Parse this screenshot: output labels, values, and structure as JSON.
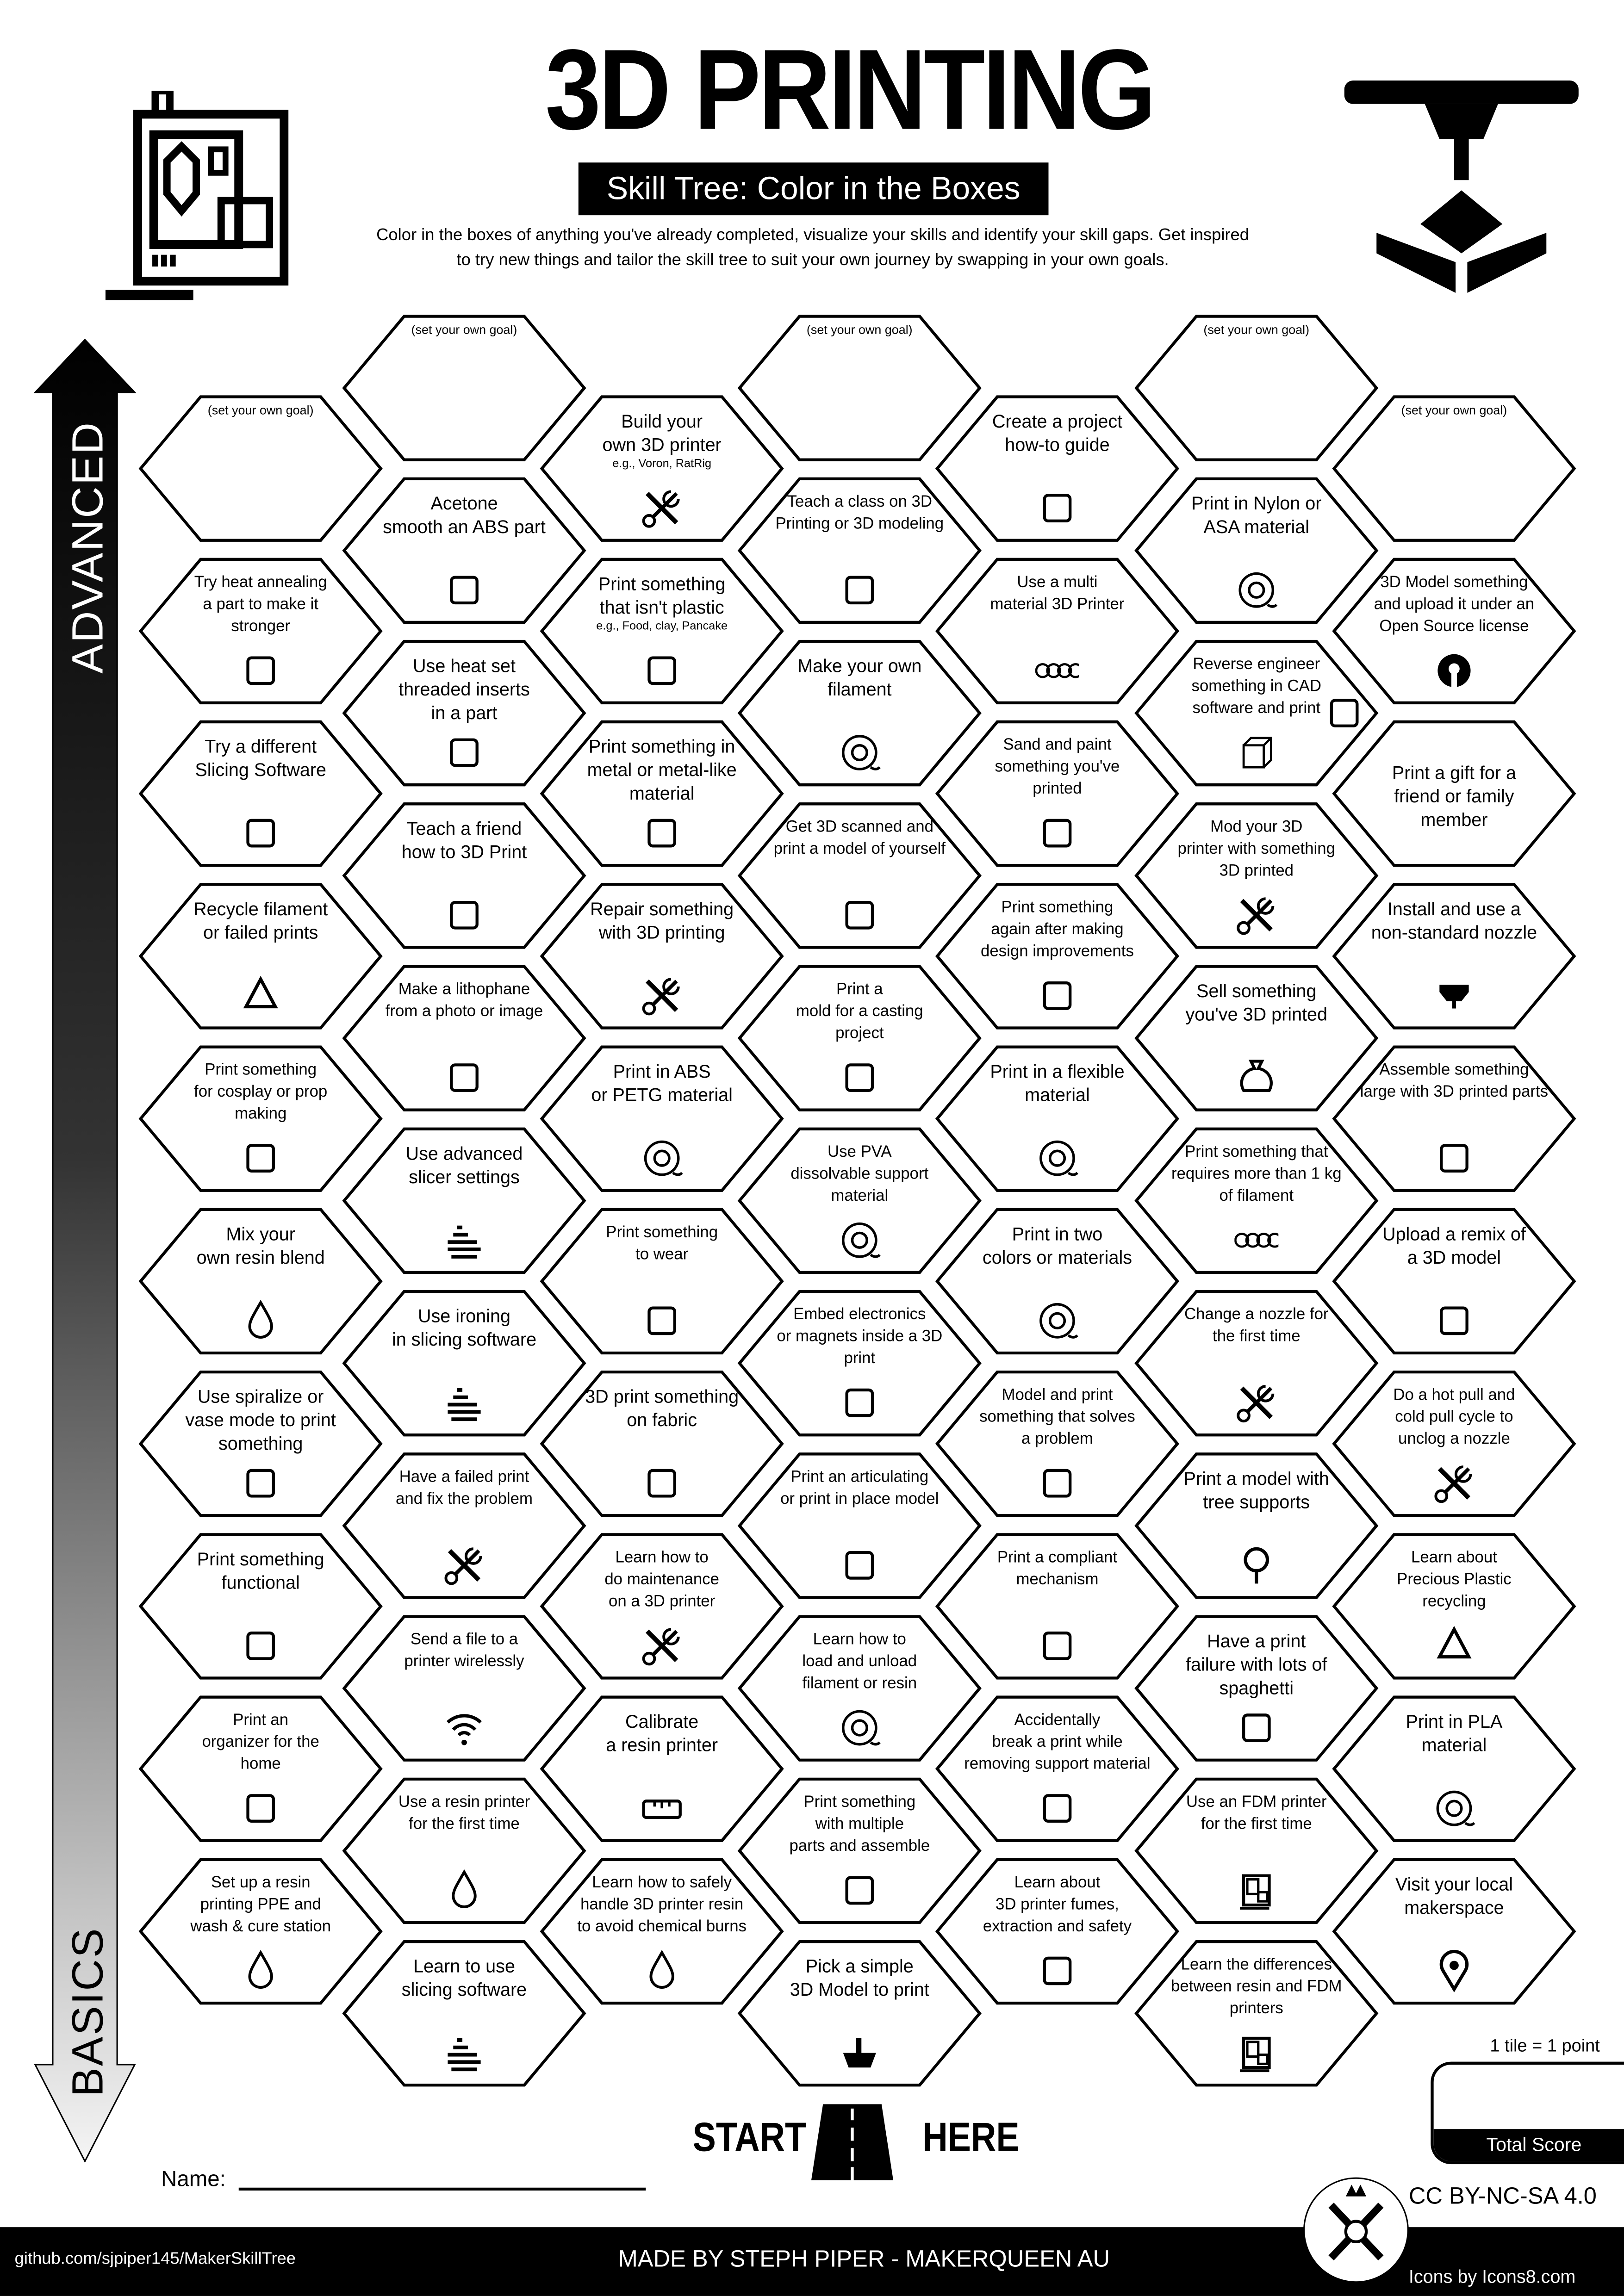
{
  "header": {
    "title": "3D PRINTING",
    "subtitle": "Skill Tree: Color in the Boxes",
    "description": "Color in the boxes of anything you've already completed, visualize your skills and identify your skill gaps.  Get inspired\nto try new things and tailor the skill tree to suit your own journey by swapping in your own goals."
  },
  "axis": {
    "top_label": "ADVANCED",
    "bottom_label": "BASICS"
  },
  "goal_label": "(set your own goal)",
  "columns": [
    [
      {
        "goal": true
      },
      {
        "text": "Try heat annealing\na part to make it\nstronger",
        "icon": "thermometer",
        "small": true
      },
      {
        "text": "Try a different\nSlicing Software",
        "icon": "laptop-gear"
      },
      {
        "text": "Recycle filament\nor failed prints",
        "icon": "recycle"
      },
      {
        "text": "Print something\nfor cosplay or prop\nmaking",
        "icon": "mannequin",
        "small": true
      },
      {
        "text": "Mix your\nown resin blend",
        "icon": "droplet"
      },
      {
        "text": "Use spiralize or\nvase mode to print\nsomething",
        "icon": "vase"
      },
      {
        "text": "Print something\nfunctional",
        "icon": "lamp"
      },
      {
        "text": "Print an\norganizer for the\nhome",
        "icon": "boxes",
        "small": true
      },
      {
        "text": "Set up a resin\nprinting PPE and\nwash & cure station",
        "icon": "droplet",
        "small": true
      }
    ],
    [
      {
        "goal": true
      },
      {
        "text": "Acetone\nsmooth an ABS part",
        "icon": "bath"
      },
      {
        "text": "Use heat set\nthreaded inserts\nin a part",
        "icon": "screw"
      },
      {
        "text": "Teach a friend\nhow to 3D Print",
        "icon": "people"
      },
      {
        "text": "Make a lithophane\nfrom a photo or image",
        "icon": "picture",
        "small": true
      },
      {
        "text": "Use advanced\nslicer settings",
        "icon": "sliced-boat"
      },
      {
        "text": "Use ironing\nin slicing software",
        "icon": "sliced-boat"
      },
      {
        "text": "Have a failed print\nand fix the problem",
        "icon": "tools",
        "small": true
      },
      {
        "text": "Send a file to a\nprinter wirelessly",
        "icon": "wifi",
        "small": true
      },
      {
        "text": "Use a resin printer\nfor the first time",
        "icon": "droplet",
        "small": true
      },
      {
        "text": "Learn to use\nslicing software",
        "icon": "sliced-boat"
      }
    ],
    [
      {
        "text": "Build your\nown 3D printer",
        "sub": "e.g., Voron, RatRig",
        "icon": "tools"
      },
      {
        "text": "Print something\nthat isn't plastic",
        "sub": "e.g., Food, clay, Pancake",
        "icon": "cake"
      },
      {
        "text": "Print something in\nmetal or metal-like\nmaterial",
        "icon": "anvil"
      },
      {
        "text": "Repair something\nwith 3D printing",
        "icon": "tools"
      },
      {
        "text": "Print in ABS\nor PETG material",
        "icon": "spool"
      },
      {
        "text": "Print something\nto wear",
        "icon": "sunglasses",
        "small": true
      },
      {
        "text": "3D print something\non fabric",
        "icon": "fabric"
      },
      {
        "text": "Learn how to\ndo maintenance\non a 3D printer",
        "icon": "tools",
        "small": true
      },
      {
        "text": "Calibrate\na resin printer",
        "icon": "ruler"
      },
      {
        "text": "Learn how to safely\nhandle 3D printer resin\nto avoid chemical burns",
        "icon": "droplet",
        "small": true
      }
    ],
    [
      {
        "goal": true
      },
      {
        "text": "Teach a class on 3D\nPrinting or 3D modeling",
        "icon": "teacher",
        "small": true
      },
      {
        "text": "Make your own\nfilament",
        "icon": "spool"
      },
      {
        "text": "Get 3D scanned and\nprint a model of yourself",
        "icon": "body-scan",
        "small": true
      },
      {
        "text": "Print a\nmold for a casting\nproject",
        "icon": "mold",
        "small": true
      },
      {
        "text": "Use PVA\ndissolvable support\nmaterial",
        "icon": "spool",
        "small": true
      },
      {
        "text": "Embed electronics\nor magnets inside a 3D\nprint",
        "icon": "led",
        "small": true
      },
      {
        "text": "Print an articulating\nor print in place model",
        "icon": "dragon",
        "small": true
      },
      {
        "text": "Learn how to\nload and unload\nfilament or resin",
        "icon": "spool",
        "small": true
      },
      {
        "text": "Print something\nwith multiple\nparts and assemble",
        "icon": "train",
        "small": true
      },
      {
        "text": "Pick a simple\n3D Model to print",
        "icon": "boat"
      }
    ],
    [
      {
        "text": "Create a project\nhow-to guide",
        "icon": "document"
      },
      {
        "text": "Use a multi\nmaterial 3D Printer",
        "icon": "spools",
        "small": true
      },
      {
        "text": "Sand and paint\nsomething you've\nprinted",
        "icon": "paint-bucket",
        "small": true
      },
      {
        "text": "Print something\nagain after making\ndesign improvements",
        "icon": "upgrade",
        "small": true
      },
      {
        "text": "Print in a flexible\nmaterial",
        "icon": "spool"
      },
      {
        "text": "Print in two\ncolors or materials",
        "icon": "spool"
      },
      {
        "text": "Model and print\nsomething that solves\na problem",
        "icon": "light-bulb",
        "small": true
      },
      {
        "text": "Print a compliant\nmechanism",
        "icon": "blaster",
        "small": true
      },
      {
        "text": "Accidentally\nbreak a print while\nremoving support material",
        "icon": "elephant",
        "small": true
      },
      {
        "text": "Learn about\n3D printer fumes,\nextraction and safety",
        "icon": "air-filter",
        "small": true
      }
    ],
    [
      {
        "goal": true
      },
      {
        "text": "Print in Nylon or\nASA material",
        "icon": "spool"
      },
      {
        "text": "Reverse engineer\nsomething in CAD\nsoftware and print",
        "icon": "cube",
        "small": true
      },
      {
        "text": "Mod your 3D\nprinter with something\n3D printed",
        "icon": "tools",
        "small": true
      },
      {
        "text": "Sell something\nyou've 3D printed",
        "icon": "money-bag"
      },
      {
        "text": "Print something that\nrequires more than 1 kg\nof filament",
        "icon": "spools",
        "small": true
      },
      {
        "text": "Change a nozzle for\nthe first time",
        "icon": "tools",
        "small": true
      },
      {
        "text": "Print a model with\ntree supports",
        "icon": "tree"
      },
      {
        "text": "Have a print\nfailure  with lots of\nspaghetti",
        "icon": "bowl"
      },
      {
        "text": "Use an FDM printer\nfor the first time",
        "icon": "printer",
        "small": true
      },
      {
        "text": "Learn the differences\nbetween resin and FDM\nprinters",
        "icon": "printer",
        "small": true
      }
    ],
    [
      {
        "goal": true
      },
      {
        "text": "3D Model something\nand upload it under an\nOpen Source license",
        "icon": "open-source-gear",
        "small": true
      },
      {
        "text": "Print a gift for a\nfriend or family\nmember",
        "icon": "gift-bow",
        "low": true
      },
      {
        "text": "Install and use a\nnon-standard nozzle",
        "icon": "nozzle"
      },
      {
        "text": "Assemble something\nlarge with 3D printed parts",
        "icon": "whale",
        "small": true
      },
      {
        "text": "Upload a remix of\na 3D model",
        "icon": "remix-arrows"
      },
      {
        "text": "Do a hot pull and\ncold pull cycle to\nunclog a nozzle",
        "icon": "tools",
        "small": true
      },
      {
        "text": "Learn about\nPrecious Plastic\nrecycling",
        "icon": "recycle",
        "small": true
      },
      {
        "text": "Print in PLA\nmaterial",
        "icon": "spool"
      },
      {
        "text": "Visit your local\nmakerspace",
        "icon": "map-pin"
      }
    ]
  ],
  "start": {
    "left": "START",
    "right": "HERE",
    "icon": "road"
  },
  "name_label": "Name:",
  "score": {
    "rule": "1 tile = 1 point",
    "label": "Total Score"
  },
  "license": "CC BY-NC-SA 4.0",
  "footer": {
    "github": "github.com/sjpiper145/MakerSkillTree",
    "made_by": "MADE BY STEPH PIPER  -  MAKERQUEEN AU",
    "icons_credit": "Icons by Icons8.com"
  },
  "colors": {
    "ink": "#000000",
    "paper": "#ffffff",
    "arrow_gradient": [
      "#000000",
      "#f2f2f2"
    ]
  }
}
